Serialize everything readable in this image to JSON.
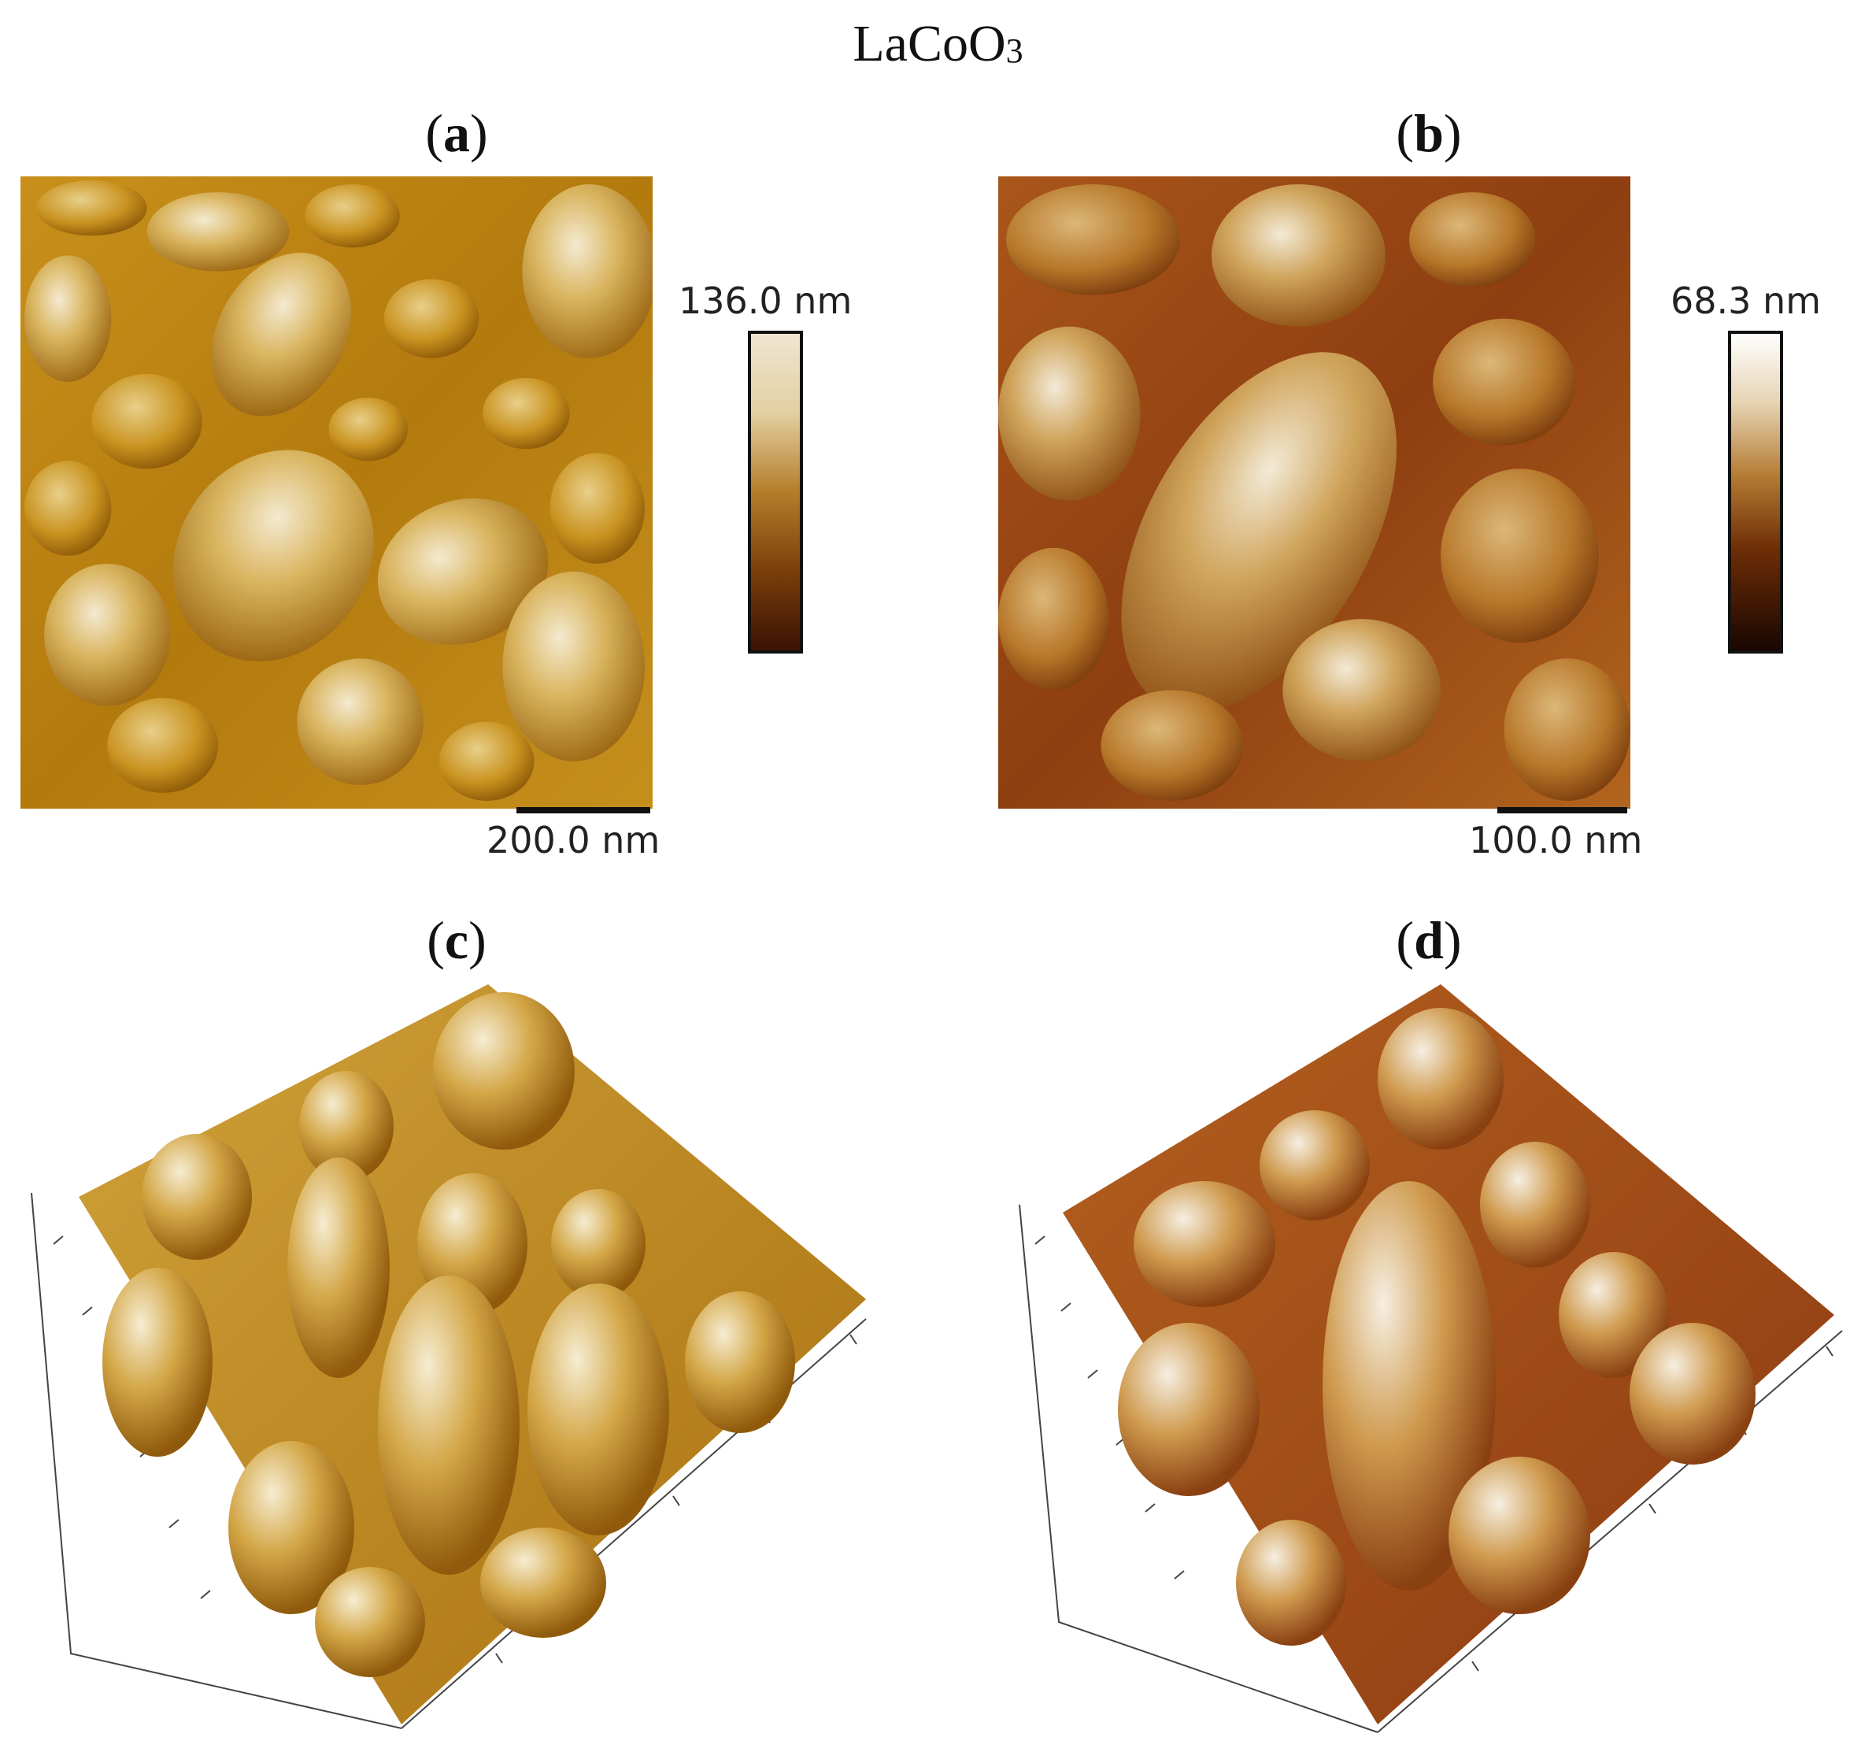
{
  "figure": {
    "title_main": "LaCoO",
    "title_sub": "3"
  },
  "panels": [
    {
      "id": "a",
      "label_open": "(",
      "label_letter": "a",
      "label_close": ")",
      "colorbar_max": "136.0 nm",
      "scalebar": "200.0 nm"
    },
    {
      "id": "b",
      "label_open": "(",
      "label_letter": "b",
      "label_close": ")",
      "colorbar_max": "68.3 nm",
      "scalebar": "100.0 nm"
    },
    {
      "id": "c",
      "label_open": "(",
      "label_letter": "c",
      "label_close": ")"
    },
    {
      "id": "d",
      "label_open": "(",
      "label_letter": "d",
      "label_close": ")"
    }
  ],
  "colors": {
    "gold_light": "#f1e6c6",
    "gold_mid": "#c8951f",
    "gold_dark": "#7a4a08",
    "brown_dark": "#2b0f05",
    "copper": "#b05a1a"
  }
}
